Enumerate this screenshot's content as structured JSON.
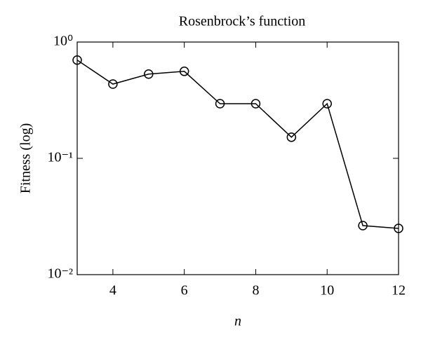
{
  "chart_data": {
    "type": "line",
    "title": "Rosenbrock’s function",
    "xlabel": "n",
    "ylabel": "Fitness (log)",
    "x": [
      3,
      4,
      5,
      6,
      7,
      8,
      9,
      10,
      11,
      12
    ],
    "series": [
      {
        "color": "#000000",
        "values": [
          0.7,
          0.435,
          0.53,
          0.56,
          0.295,
          0.295,
          0.152,
          0.295,
          0.0264,
          0.025
        ]
      }
    ],
    "xlim": [
      3,
      12
    ],
    "xticks": [
      4,
      6,
      8,
      10,
      12
    ],
    "ylim": [
      0.01,
      1
    ],
    "ylog": true,
    "yticks": [
      {
        "value": 0.01,
        "label": "10⁻²"
      },
      {
        "value": 0.1,
        "label": "10⁻¹"
      },
      {
        "value": 1,
        "label": "10⁰"
      }
    ]
  }
}
